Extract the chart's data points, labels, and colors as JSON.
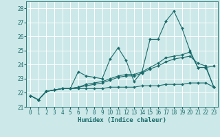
{
  "xlabel": "Humidex (Indice chaleur)",
  "x_ticks": [
    0,
    1,
    2,
    3,
    4,
    5,
    6,
    7,
    8,
    9,
    10,
    11,
    12,
    13,
    14,
    15,
    16,
    17,
    18,
    19,
    20,
    21,
    22,
    23
  ],
  "ylim": [
    21,
    28.5
  ],
  "xlim": [
    -0.5,
    23.5
  ],
  "y_ticks": [
    21,
    22,
    23,
    24,
    25,
    26,
    27,
    28
  ],
  "bg_color": "#cce8e8",
  "grid_color": "#ffffff",
  "line_color": "#1a6b6b",
  "lines": [
    [
      21.8,
      21.5,
      22.1,
      22.2,
      22.3,
      22.3,
      23.5,
      23.2,
      23.1,
      23.0,
      24.4,
      25.2,
      24.3,
      22.8,
      23.5,
      25.8,
      25.8,
      27.1,
      27.8,
      26.6,
      25.0,
      23.8,
      23.8,
      23.9
    ],
    [
      21.8,
      21.5,
      22.1,
      22.2,
      22.3,
      22.3,
      22.4,
      22.6,
      22.7,
      22.8,
      23.0,
      23.2,
      23.3,
      23.3,
      23.5,
      23.8,
      24.1,
      24.5,
      24.6,
      24.7,
      24.9,
      23.8,
      23.8,
      22.4
    ],
    [
      21.8,
      21.5,
      22.1,
      22.2,
      22.3,
      22.3,
      22.4,
      22.5,
      22.6,
      22.7,
      22.9,
      23.1,
      23.2,
      23.2,
      23.4,
      23.7,
      23.9,
      24.2,
      24.4,
      24.5,
      24.6,
      24.1,
      23.9,
      22.4
    ],
    [
      21.8,
      21.5,
      22.1,
      22.2,
      22.3,
      22.3,
      22.3,
      22.3,
      22.3,
      22.3,
      22.4,
      22.4,
      22.4,
      22.4,
      22.5,
      22.5,
      22.5,
      22.6,
      22.6,
      22.6,
      22.7,
      22.7,
      22.7,
      22.4
    ]
  ]
}
